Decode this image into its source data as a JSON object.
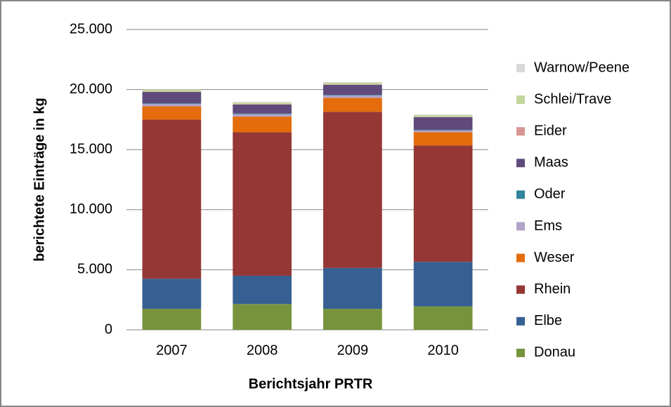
{
  "chart_data": {
    "type": "stacked_bar",
    "xlabel": "Berichtsjahr PRTR",
    "ylabel": "berichtete Einträge in kg",
    "categories": [
      "2007",
      "2008",
      "2009",
      "2010"
    ],
    "ylim": [
      0,
      25000
    ],
    "yticks": [
      0,
      {
        "value": 5000,
        "label": "5.000"
      },
      {
        "value": 10000,
        "label": "10.000"
      },
      {
        "value": 15000,
        "label": "15.000"
      },
      {
        "value": 20000,
        "label": "20.000"
      },
      {
        "value": 25000,
        "label": "25.000"
      }
    ],
    "grid": true,
    "legend": "right",
    "series": [
      {
        "name": "Donau",
        "color": "#77933c",
        "values": [
          1750,
          2150,
          1750,
          1950
        ]
      },
      {
        "name": "Elbe",
        "color": "#376092",
        "values": [
          2500,
          2350,
          3400,
          3700
        ]
      },
      {
        "name": "Rhein",
        "color": "#953735",
        "values": [
          13250,
          11950,
          13000,
          9700
        ]
      },
      {
        "name": "Weser",
        "color": "#e46c0a",
        "values": [
          1100,
          1300,
          1150,
          1100
        ]
      },
      {
        "name": "Ems",
        "color": "#b3a2c7",
        "values": [
          200,
          200,
          200,
          150
        ]
      },
      {
        "name": "Oder",
        "color": "#31859c",
        "values": [
          50,
          50,
          50,
          50
        ]
      },
      {
        "name": "Maas",
        "color": "#604a7b",
        "values": [
          950,
          750,
          850,
          1050
        ]
      },
      {
        "name": "Eider",
        "color": "#d99694",
        "values": [
          20,
          20,
          20,
          20
        ]
      },
      {
        "name": "Schlei/Trave",
        "color": "#c3d69b",
        "values": [
          150,
          150,
          150,
          150
        ]
      },
      {
        "name": "Warnow/Peene",
        "color": "#d9d9d9",
        "values": [
          30,
          50,
          50,
          50
        ]
      }
    ]
  }
}
